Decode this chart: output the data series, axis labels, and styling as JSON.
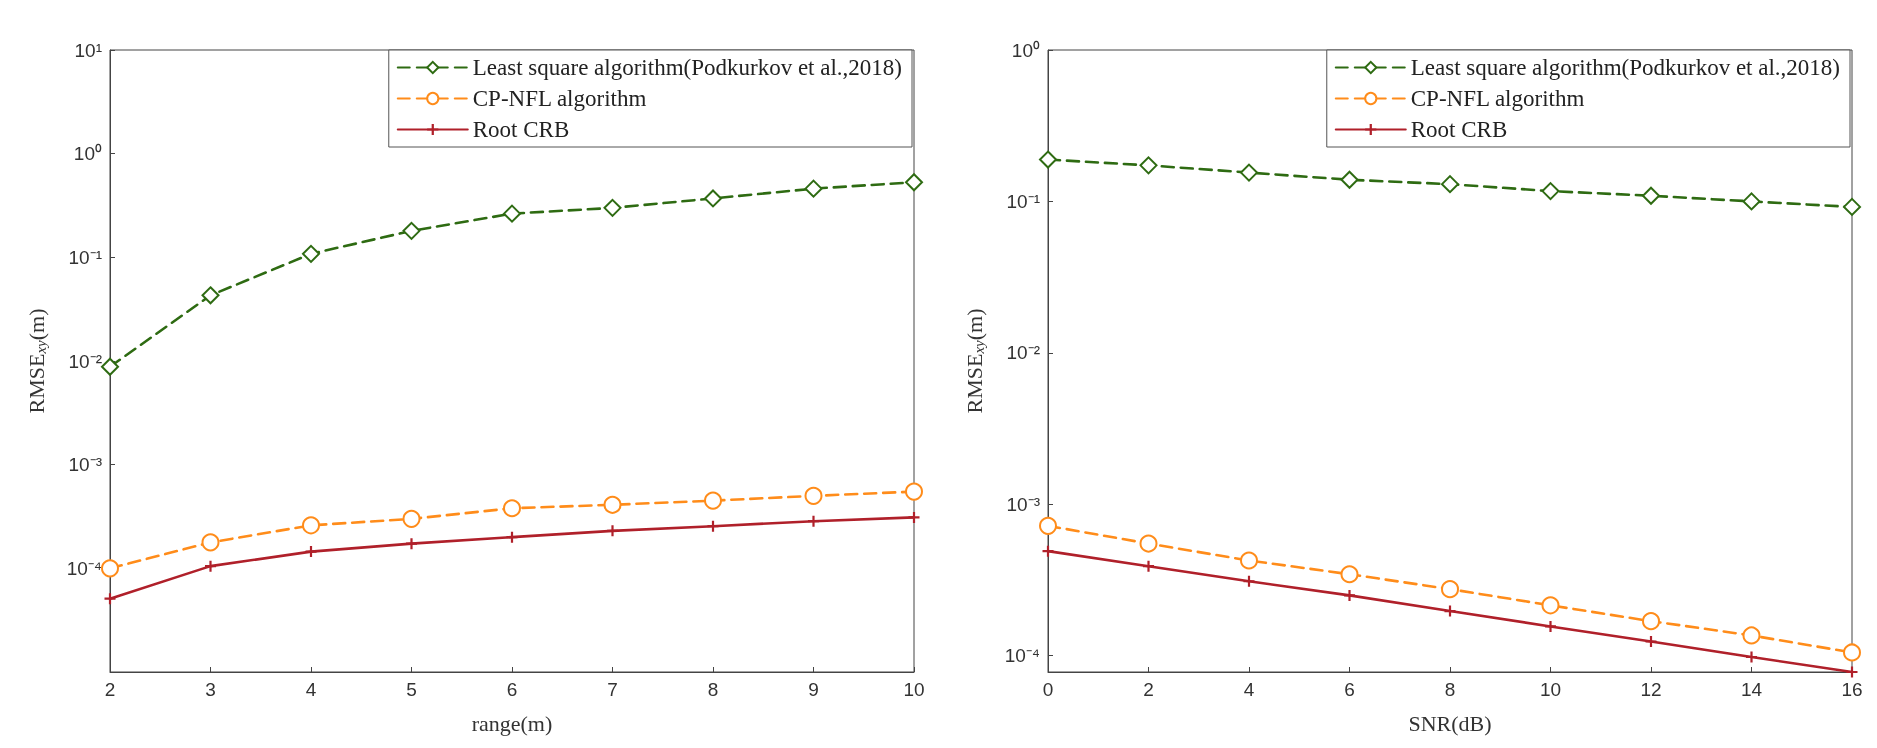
{
  "chart_data": [
    {
      "type": "line",
      "xlabel": "range(m)",
      "ylabel": "RMSE$_{xy}$(m)",
      "log": "y",
      "xlim": [
        2,
        10
      ],
      "xticks": [
        2,
        3,
        4,
        5,
        6,
        7,
        8,
        9,
        10
      ],
      "ylim": [
        1e-05,
        10
      ],
      "yticks": [
        {
          "value": 0.0001,
          "label": "10⁻⁴"
        },
        {
          "value": 0.001,
          "label": "10⁻³"
        },
        {
          "value": 0.01,
          "label": "10⁻²"
        },
        {
          "value": 0.1,
          "label": "10⁻¹"
        },
        {
          "value": 1,
          "label": "10⁰"
        },
        {
          "value": 10,
          "label": "10¹"
        }
      ],
      "grid": false,
      "legend": "top right",
      "x": [
        2,
        3,
        4,
        5,
        6,
        7,
        8,
        9,
        10
      ],
      "series": [
        {
          "name": "Least square algorithm(Podkurkov et al.,2018)",
          "color": "#2e6b12",
          "marker": "diamond",
          "line_style": "dashed",
          "values": [
            0.0088,
            0.043,
            0.108,
            0.18,
            0.264,
            0.3,
            0.37,
            0.46,
            0.53
          ]
        },
        {
          "name": "CP-NFL algorithm",
          "color": "#ff8c1a",
          "marker": "circle",
          "line_style": "dashed",
          "values": [
            0.0001,
            0.000178,
            0.00026,
            0.0003,
            0.00038,
            0.00041,
            0.00045,
            0.0005,
            0.00055
          ]
        },
        {
          "name": "Root CRB",
          "color": "#b0202a",
          "marker": "cross",
          "line_style": "solid",
          "values": [
            5.1e-05,
            0.000105,
            0.000145,
            0.000173,
            0.0002,
            0.00023,
            0.000255,
            0.000285,
            0.00031
          ]
        }
      ]
    },
    {
      "type": "line",
      "xlabel": "SNR(dB)",
      "ylabel": "RMSE$_{xy}$(m)",
      "log": "y",
      "xlim": [
        0,
        16
      ],
      "xticks": [
        0,
        2,
        4,
        6,
        8,
        10,
        12,
        14,
        16
      ],
      "ylim": [
        7.8e-05,
        1
      ],
      "yticks": [
        {
          "value": 0.0001,
          "label": "10⁻⁴"
        },
        {
          "value": 0.001,
          "label": "10⁻³"
        },
        {
          "value": 0.01,
          "label": "10⁻²"
        },
        {
          "value": 0.1,
          "label": "10⁻¹"
        },
        {
          "value": 1,
          "label": "10⁰"
        }
      ],
      "grid": false,
      "legend": "top right",
      "x": [
        0,
        2,
        4,
        6,
        8,
        10,
        12,
        14,
        16
      ],
      "series": [
        {
          "name": "Least square algorithm(Podkurkov et al.,2018)",
          "color": "#2e6b12",
          "marker": "diamond",
          "line_style": "dashed",
          "values": [
            0.189,
            0.173,
            0.155,
            0.139,
            0.13,
            0.117,
            0.109,
            0.1,
            0.092
          ]
        },
        {
          "name": "CP-NFL algorithm",
          "color": "#ff8c1a",
          "marker": "circle",
          "line_style": "dashed",
          "values": [
            0.00072,
            0.00055,
            0.000425,
            0.000345,
            0.000275,
            0.000215,
            0.000169,
            0.000136,
            0.000105
          ]
        },
        {
          "name": "Root CRB",
          "color": "#b0202a",
          "marker": "cross",
          "line_style": "solid",
          "values": [
            0.00049,
            0.00039,
            0.00031,
            0.00025,
            0.000197,
            0.000156,
            0.000124,
            9.8e-05,
            7.8e-05
          ]
        }
      ]
    }
  ]
}
